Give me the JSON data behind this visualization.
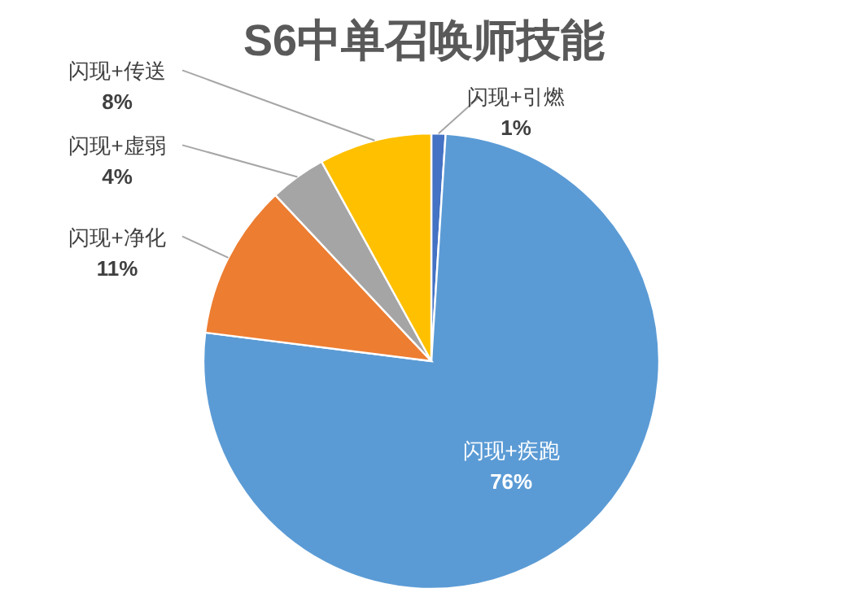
{
  "chart_data": {
    "type": "pie",
    "title": "S6中单召唤师技能",
    "categories": [
      "闪现+引燃",
      "闪现+疾跑",
      "闪现+净化",
      "闪现+虚弱",
      "闪现+传送"
    ],
    "values": [
      1,
      76,
      11,
      4,
      8
    ],
    "colors": [
      "#4472c4",
      "#5b9bd5",
      "#ed7d31",
      "#a5a5a5",
      "#ffc000"
    ],
    "value_labels": [
      "1%",
      "76%",
      "11%",
      "4%",
      "8%"
    ]
  }
}
